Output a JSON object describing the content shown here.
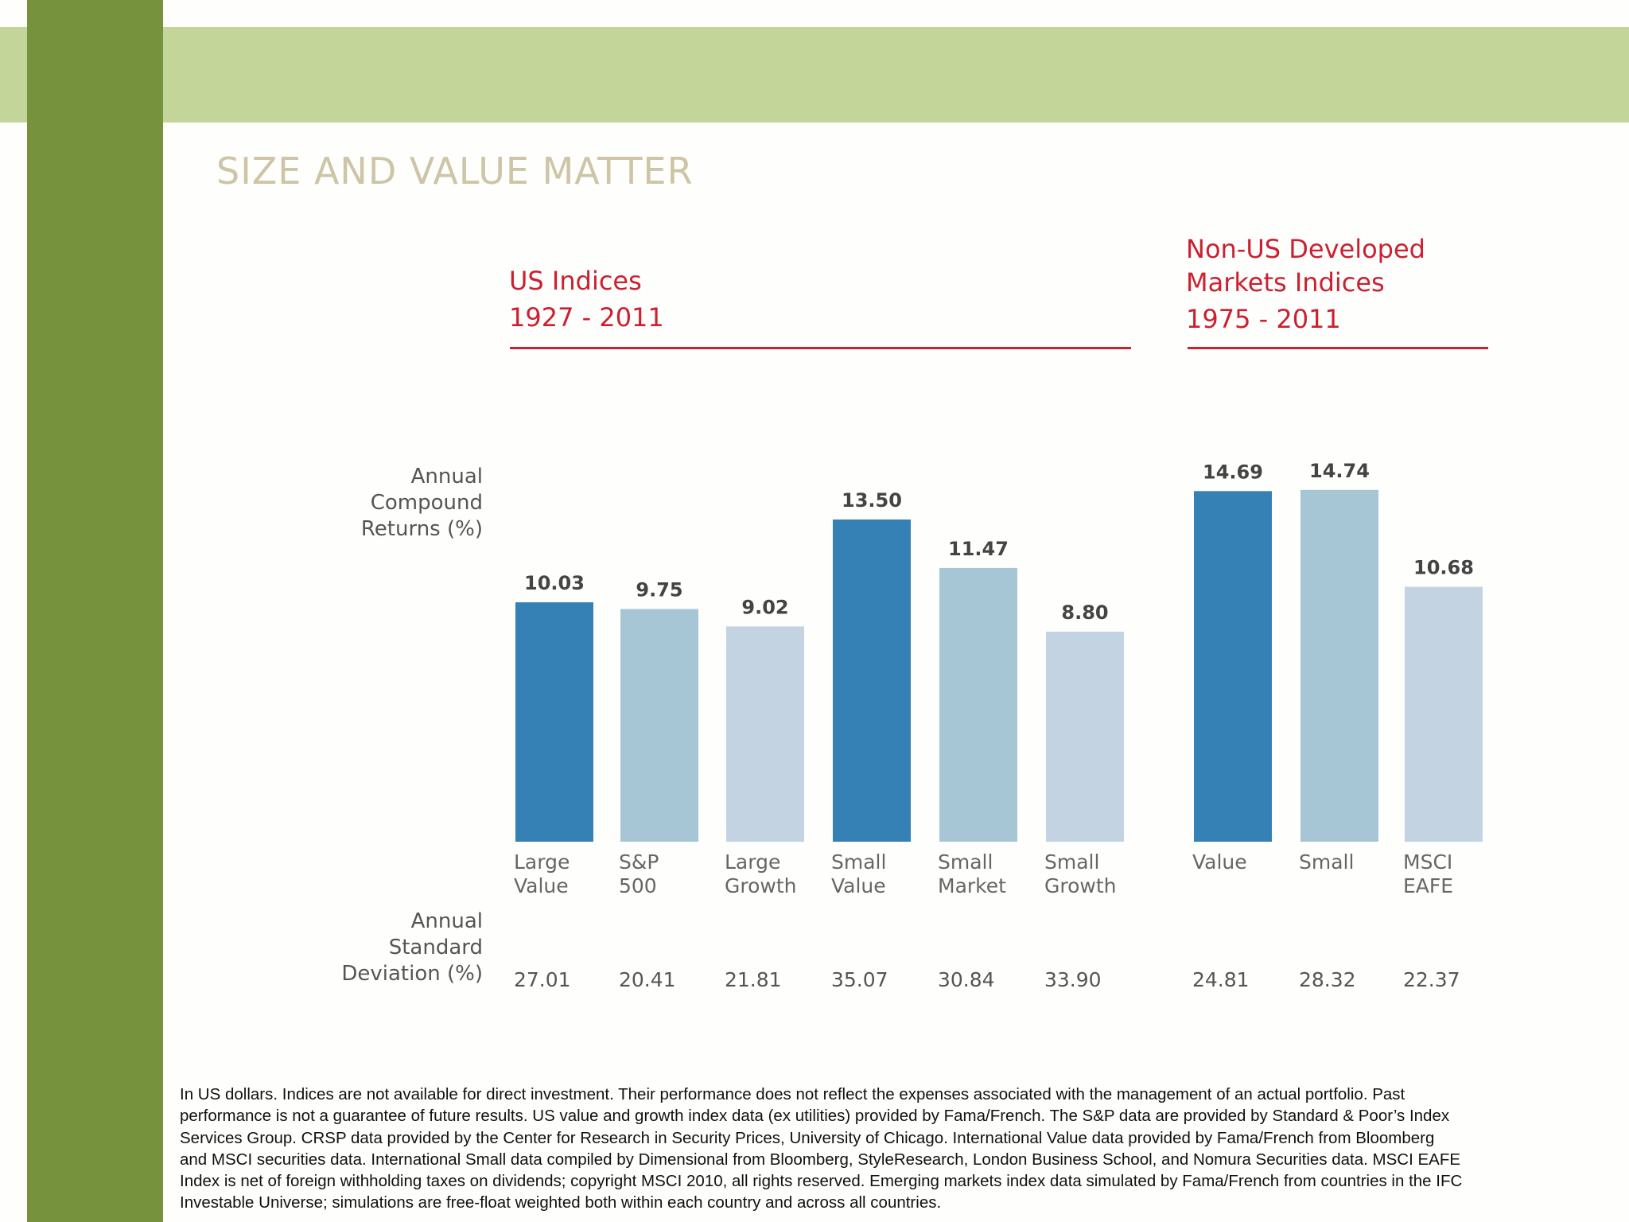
{
  "title": "SIZE AND VALUE MATTER",
  "groups": [
    {
      "title_lines": [
        "US Indices"
      ],
      "years": "1927 - 2011"
    },
    {
      "title_lines": [
        "Non-US Developed",
        "Markets Indices"
      ],
      "years": "1975 - 2011"
    }
  ],
  "row_labels": {
    "returns": [
      "Annual",
      "Compound",
      "Returns (%)"
    ],
    "std_dev": [
      "Annual",
      "Standard",
      "Deviation (%)"
    ]
  },
  "colors": {
    "dark_blue": "#3580b5",
    "mid_blue": "#a6c6d6",
    "light_blue": "#c3d3e2",
    "accent_red": "#cc1f2f",
    "green_dark": "#76923c",
    "green_light": "#c4d59a"
  },
  "chart_data": {
    "type": "bar",
    "categories": [
      [
        "Large",
        "Value"
      ],
      [
        "S&P",
        "500"
      ],
      [
        "Large",
        "Growth"
      ],
      [
        "Small",
        "Value"
      ],
      [
        "Small",
        "Market"
      ],
      [
        "Small",
        "Growth"
      ],
      [
        "Value"
      ],
      [
        "Small"
      ],
      [
        "MSCI",
        "EAFE"
      ]
    ],
    "group_of_category": [
      0,
      0,
      0,
      0,
      0,
      0,
      1,
      1,
      1
    ],
    "values": [
      10.03,
      9.75,
      9.02,
      13.5,
      11.47,
      8.8,
      14.69,
      14.74,
      10.68
    ],
    "value_labels": [
      "10.03",
      "9.75",
      "9.02",
      "13.50",
      "11.47",
      "8.80",
      "14.69",
      "14.74",
      "10.68"
    ],
    "std_dev": [
      "27.01",
      "20.41",
      "21.81",
      "35.07",
      "30.84",
      "33.90",
      "24.81",
      "28.32",
      "22.37"
    ],
    "bar_colors": [
      "#3580b5",
      "#a6c6d6",
      "#c3d3e2",
      "#3580b5",
      "#a6c6d6",
      "#c3d3e2",
      "#3580b5",
      "#a6c6d6",
      "#c3d3e2"
    ],
    "ylabel": "Annual Compound Returns (%)",
    "ylim": [
      0,
      15
    ],
    "grid": false
  },
  "footnote_lines": [
    "In US dollars. Indices are not available for direct investment. Their performance does not reflect the expenses associated with the management of an actual portfolio. Past",
    "performance is not a guarantee of future results. US value and growth index data (ex utilities) provided by Fama/French. The S&P data are provided by Standard & Poor’s Index",
    "Services Group. CRSP data provided by the Center for Research in Security Prices, University of Chicago. International Value data provided by Fama/French from Bloomberg",
    "and MSCI securities data. International Small data compiled by Dimensional from Bloomberg, StyleResearch, London Business School, and Nomura Securities data. MSCI EAFE",
    "Index is net of foreign withholding taxes on dividends; copyright MSCI 2010, all rights reserved. Emerging markets index data simulated by Fama/French from countries in the IFC",
    "Investable Universe; simulations are free-float weighted both within each country and across all countries."
  ]
}
